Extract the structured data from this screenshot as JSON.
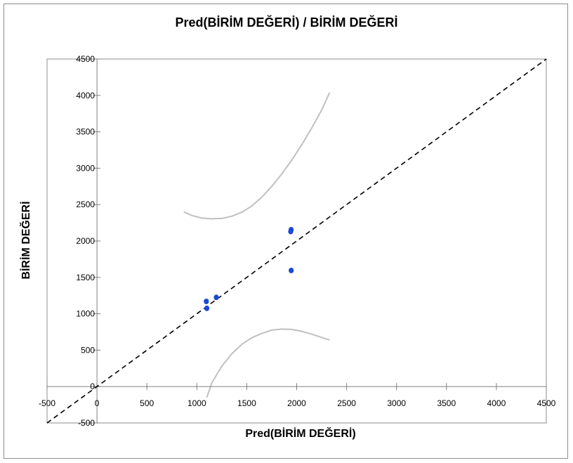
{
  "chart_data": {
    "type": "scatter",
    "title": "Pred(BİRİM DEĞERİ)  / BİRİM DEĞERİ",
    "xlabel": "Pred(BİRİM DEĞERİ)",
    "ylabel": "BİRİM DEĞERİ",
    "xlim": [
      -500,
      4500
    ],
    "ylim": [
      -500,
      4500
    ],
    "x_ticks": [
      "-500",
      "0",
      "500",
      "1000",
      "1500",
      "2000",
      "2500",
      "3000",
      "3500",
      "4000",
      "4500"
    ],
    "y_ticks": [
      "-500",
      "0",
      "500",
      "1000",
      "1500",
      "2000",
      "2500",
      "3000",
      "3500",
      "4000",
      "4500"
    ],
    "grid": false,
    "points": [
      {
        "x": 1095,
        "y": 1170
      },
      {
        "x": 1100,
        "y": 1075
      },
      {
        "x": 1195,
        "y": 1225
      },
      {
        "x": 1940,
        "y": 2130
      },
      {
        "x": 1945,
        "y": 2155
      },
      {
        "x": 1945,
        "y": 1595
      }
    ],
    "identity_line": {
      "from": [
        -500,
        -500
      ],
      "to": [
        4500,
        4500
      ],
      "style": "dashed"
    },
    "confidence_upper": [
      [
        870,
        2400
      ],
      [
        950,
        2350
      ],
      [
        1050,
        2315
      ],
      [
        1150,
        2305
      ],
      [
        1250,
        2310
      ],
      [
        1350,
        2340
      ],
      [
        1450,
        2395
      ],
      [
        1550,
        2480
      ],
      [
        1650,
        2600
      ],
      [
        1750,
        2750
      ],
      [
        1850,
        2920
      ],
      [
        1950,
        3110
      ],
      [
        2050,
        3320
      ],
      [
        2150,
        3550
      ],
      [
        2250,
        3800
      ],
      [
        2330,
        4040
      ]
    ],
    "confidence_lower": [
      [
        1100,
        -150
      ],
      [
        1150,
        50
      ],
      [
        1250,
        280
      ],
      [
        1350,
        450
      ],
      [
        1450,
        580
      ],
      [
        1550,
        670
      ],
      [
        1650,
        730
      ],
      [
        1750,
        775
      ],
      [
        1850,
        790
      ],
      [
        1950,
        785
      ],
      [
        2050,
        760
      ],
      [
        2150,
        720
      ],
      [
        2250,
        675
      ],
      [
        2330,
        640
      ]
    ],
    "colors": {
      "points": "#1a49d6",
      "identity_line": "#000000",
      "confidence": "#c0c0c0",
      "axis": "#808080"
    }
  }
}
